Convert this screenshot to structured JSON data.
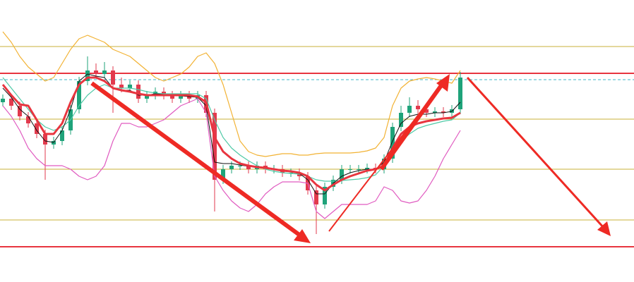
{
  "chart_data": {
    "type": "candlestick",
    "ylim": [
      0,
      400
    ],
    "up_color": "#1fa37a",
    "down_color": "#e23a4d",
    "open": [
      255,
      260,
      250,
      235,
      225,
      210,
      195,
      200,
      215,
      245,
      285,
      300,
      295,
      300,
      280,
      275,
      280,
      260,
      265,
      270,
      265,
      260,
      265,
      260,
      265,
      240,
      145,
      160,
      165,
      165,
      160,
      165,
      160,
      160,
      155,
      155,
      150,
      130,
      110,
      135,
      145,
      160,
      160,
      160,
      162,
      160,
      175,
      220,
      240,
      250,
      245,
      240,
      242,
      240,
      245
    ],
    "high": [
      266,
      266,
      256,
      241,
      231,
      216,
      206,
      221,
      251,
      291,
      320,
      310,
      312,
      306,
      290,
      286,
      286,
      271,
      276,
      276,
      271,
      271,
      271,
      271,
      271,
      246,
      166,
      171,
      171,
      171,
      171,
      171,
      166,
      166,
      161,
      161,
      156,
      136,
      141,
      151,
      166,
      166,
      166,
      168,
      168,
      181,
      226,
      250,
      262,
      258,
      251,
      248,
      248,
      251,
      298
    ],
    "low": [
      249,
      244,
      229,
      219,
      204,
      145,
      189,
      194,
      209,
      239,
      279,
      289,
      289,
      240,
      269,
      269,
      254,
      254,
      259,
      259,
      254,
      254,
      254,
      254,
      234,
      100,
      139,
      154,
      159,
      154,
      154,
      154,
      154,
      149,
      149,
      144,
      124,
      68,
      104,
      129,
      139,
      154,
      154,
      154,
      154,
      154,
      169,
      214,
      234,
      239,
      234,
      234,
      234,
      234,
      238
    ],
    "close": [
      260,
      250,
      235,
      225,
      210,
      195,
      200,
      215,
      245,
      285,
      300,
      295,
      300,
      280,
      275,
      280,
      260,
      265,
      270,
      265,
      260,
      265,
      260,
      265,
      240,
      145,
      160,
      165,
      165,
      160,
      165,
      160,
      160,
      155,
      155,
      150,
      130,
      110,
      135,
      145,
      160,
      160,
      160,
      162,
      160,
      175,
      220,
      240,
      250,
      245,
      240,
      242,
      240,
      245,
      290
    ],
    "series": [
      {
        "color": "#f2b233",
        "width": 1.2,
        "values": [
          355,
          340,
          320,
          305,
          295,
          285,
          290,
          310,
          330,
          345,
          350,
          345,
          340,
          330,
          325,
          320,
          310,
          300,
          290,
          285,
          290,
          295,
          305,
          320,
          325,
          310,
          280,
          240,
          200,
          185,
          180,
          178,
          180,
          182,
          182,
          180,
          180,
          182,
          183,
          183,
          183,
          183,
          184,
          186,
          190,
          205,
          250,
          275,
          285,
          288,
          290,
          288,
          285,
          282,
          300
        ]
      },
      {
        "color": "#e05bc0",
        "width": 1.2,
        "values": [
          250,
          235,
          215,
          190,
          175,
          165,
          165,
          165,
          160,
          150,
          145,
          150,
          165,
          200,
          225,
          225,
          220,
          220,
          225,
          230,
          240,
          250,
          255,
          260,
          240,
          150,
          130,
          115,
          105,
          100,
          110,
          125,
          135,
          142,
          142,
          142,
          140,
          100,
          90,
          100,
          110,
          110,
          110,
          110,
          115,
          135,
          130,
          115,
          112,
          115,
          130,
          150,
          175,
          195,
          215
        ]
      },
      {
        "color": "#4fc9a6",
        "width": 1.2,
        "values": [
          290,
          275,
          260,
          245,
          230,
          220,
          215,
          220,
          230,
          250,
          265,
          275,
          280,
          275,
          275,
          275,
          273,
          270,
          268,
          267,
          267,
          267,
          267,
          267,
          260,
          230,
          205,
          190,
          180,
          172,
          165,
          160,
          157,
          155,
          154,
          153,
          150,
          145,
          143,
          143,
          144,
          145,
          146,
          148,
          152,
          165,
          185,
          200,
          210,
          218,
          222,
          225,
          228,
          230,
          240
        ]
      },
      {
        "color": "#111111",
        "width": 1,
        "values": [
          275,
          262,
          245,
          235,
          215,
          200,
          198,
          215,
          245,
          285,
          295,
          292,
          290,
          275,
          272,
          272,
          265,
          265,
          267,
          266,
          264,
          264,
          263,
          262,
          250,
          170,
          168,
          168,
          166,
          164,
          164,
          162,
          160,
          158,
          156,
          154,
          145,
          125,
          125,
          140,
          150,
          155,
          158,
          160,
          160,
          170,
          200,
          225,
          235,
          238,
          238,
          240,
          240,
          242,
          255
        ]
      },
      {
        "color": "#e8353f",
        "width": 3,
        "values": [
          280,
          265,
          252,
          250,
          230,
          210,
          210,
          225,
          255,
          280,
          290,
          290,
          285,
          275,
          272,
          270,
          267,
          265,
          265,
          265,
          265,
          265,
          265,
          263,
          255,
          205,
          185,
          175,
          168,
          165,
          163,
          162,
          160,
          158,
          157,
          155,
          150,
          138,
          130,
          138,
          145,
          150,
          154,
          158,
          160,
          165,
          190,
          210,
          220,
          225,
          228,
          230,
          232,
          233,
          240
        ]
      }
    ],
    "hlines": [
      {
        "value": 334,
        "color": "#c9b23a",
        "style": "solid"
      },
      {
        "value": 231,
        "color": "#c9b23a",
        "style": "solid"
      },
      {
        "value": 160,
        "color": "#c9b23a",
        "style": "solid"
      },
      {
        "value": 88,
        "color": "#c9b23a",
        "style": "solid"
      },
      {
        "value": 296,
        "color": "#e8353f",
        "style": "solid"
      },
      {
        "value": 50,
        "color": "#e8353f",
        "style": "solid"
      },
      {
        "value": 287,
        "color": "#3bb8c9",
        "style": "dashed"
      }
    ]
  }
}
